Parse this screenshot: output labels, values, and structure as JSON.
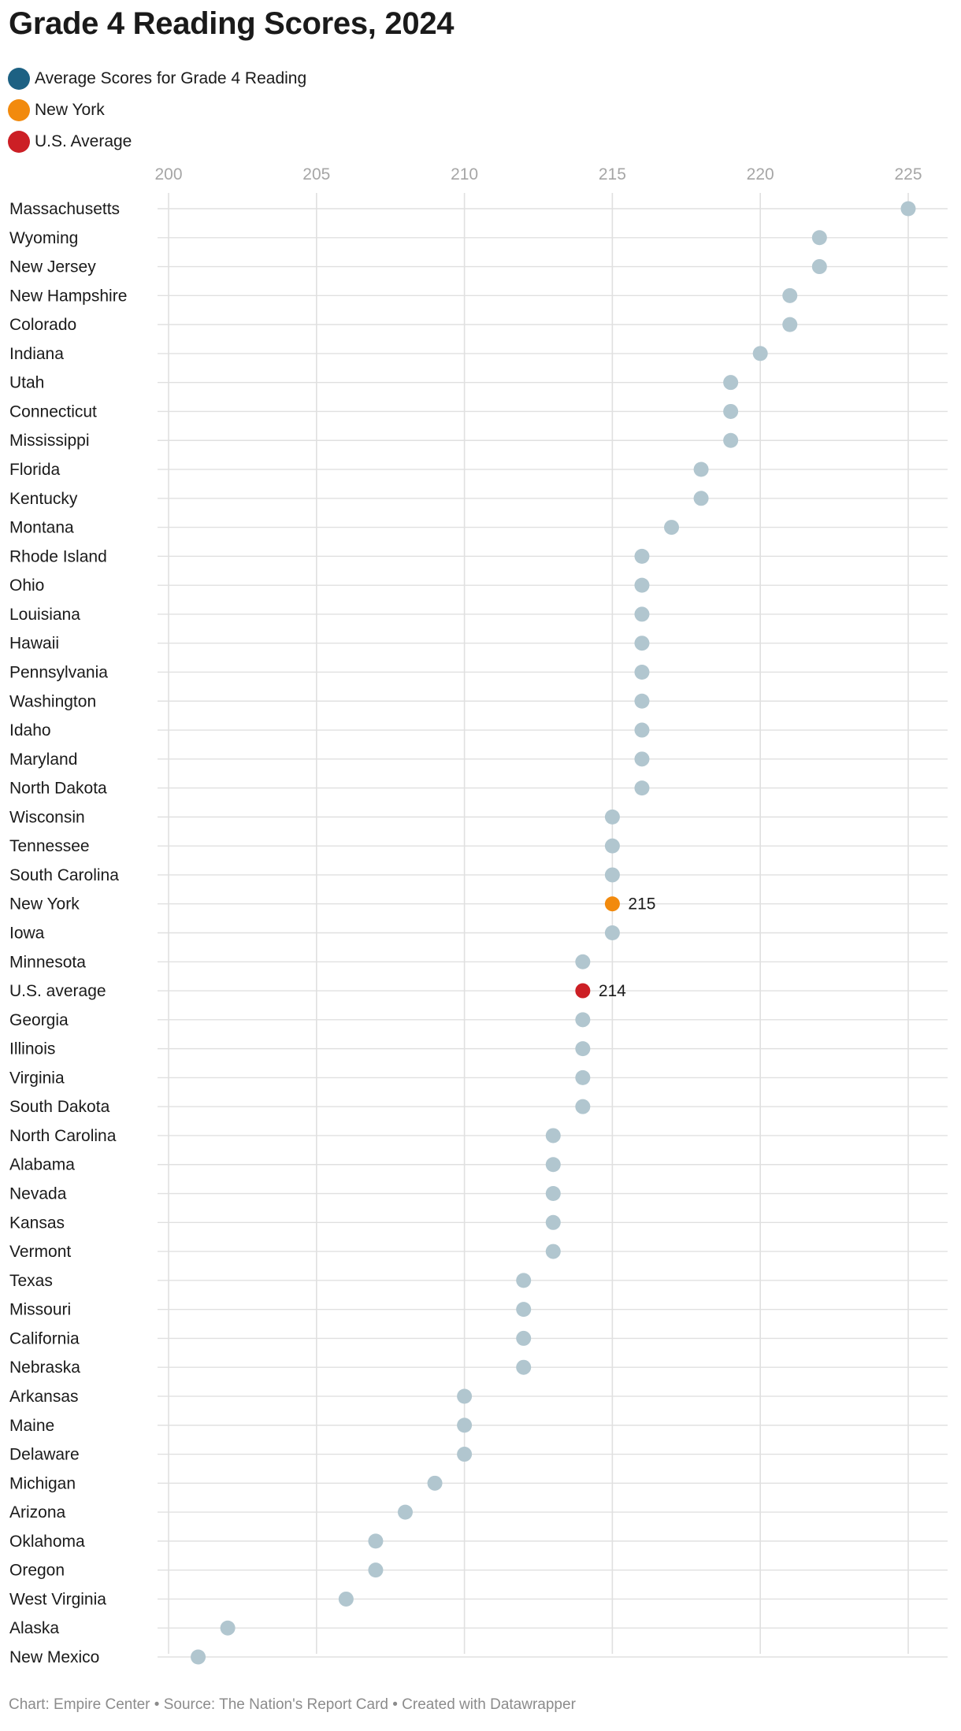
{
  "colors": {
    "average": "#1d6183",
    "highlight": "#f28a0d",
    "us_average": "#cc1f25",
    "dot": "#b1c6cf",
    "grid": "#e0e0e0",
    "tick": "#a6a6a6"
  },
  "legend": [
    {
      "label": "Average Scores for Grade 4 Reading",
      "color": "#1d6183"
    },
    {
      "label": "New York",
      "color": "#f28a0d"
    },
    {
      "label": "U.S. Average",
      "color": "#cc1f25"
    }
  ],
  "footer": "Chart: Empire Center • Source: The Nation's Report Card • Created with Datawrapper",
  "chart_data": {
    "type": "scatter",
    "title": "Grade 4 Reading Scores, 2024",
    "xlabel": "",
    "ylabel": "",
    "xlim": [
      200,
      225
    ],
    "xticks": [
      200,
      205,
      210,
      215,
      220,
      225
    ],
    "grid": true,
    "legend_position": "top-left",
    "rows": [
      {
        "state": "Massachusetts",
        "value": 225
      },
      {
        "state": "Wyoming",
        "value": 222
      },
      {
        "state": "New Jersey",
        "value": 222
      },
      {
        "state": "New Hampshire",
        "value": 221
      },
      {
        "state": "Colorado",
        "value": 221
      },
      {
        "state": "Indiana",
        "value": 220
      },
      {
        "state": "Utah",
        "value": 219
      },
      {
        "state": "Connecticut",
        "value": 219
      },
      {
        "state": "Mississippi",
        "value": 219
      },
      {
        "state": "Florida",
        "value": 218
      },
      {
        "state": "Kentucky",
        "value": 218
      },
      {
        "state": "Montana",
        "value": 217
      },
      {
        "state": "Rhode Island",
        "value": 216
      },
      {
        "state": "Ohio",
        "value": 216
      },
      {
        "state": "Louisiana",
        "value": 216
      },
      {
        "state": "Hawaii",
        "value": 216
      },
      {
        "state": "Pennsylvania",
        "value": 216
      },
      {
        "state": "Washington",
        "value": 216
      },
      {
        "state": "Idaho",
        "value": 216
      },
      {
        "state": "Maryland",
        "value": 216
      },
      {
        "state": "North Dakota",
        "value": 216
      },
      {
        "state": "Wisconsin",
        "value": 215
      },
      {
        "state": "Tennessee",
        "value": 215
      },
      {
        "state": "South Carolina",
        "value": 215
      },
      {
        "state": "New York",
        "value": 215,
        "highlight": "highlight",
        "label": "215"
      },
      {
        "state": "Iowa",
        "value": 215
      },
      {
        "state": "Minnesota",
        "value": 214
      },
      {
        "state": "U.S. average",
        "value": 214,
        "highlight": "us_average",
        "label": "214"
      },
      {
        "state": "Georgia",
        "value": 214
      },
      {
        "state": "Illinois",
        "value": 214
      },
      {
        "state": "Virginia",
        "value": 214
      },
      {
        "state": "South Dakota",
        "value": 214
      },
      {
        "state": "North Carolina",
        "value": 213
      },
      {
        "state": "Alabama",
        "value": 213
      },
      {
        "state": "Nevada",
        "value": 213
      },
      {
        "state": "Kansas",
        "value": 213
      },
      {
        "state": "Vermont",
        "value": 213
      },
      {
        "state": "Texas",
        "value": 212
      },
      {
        "state": "Missouri",
        "value": 212
      },
      {
        "state": "California",
        "value": 212
      },
      {
        "state": "Nebraska",
        "value": 212
      },
      {
        "state": "Arkansas",
        "value": 210
      },
      {
        "state": "Maine",
        "value": 210
      },
      {
        "state": "Delaware",
        "value": 210
      },
      {
        "state": "Michigan",
        "value": 209
      },
      {
        "state": "Arizona",
        "value": 208
      },
      {
        "state": "Oklahoma",
        "value": 207
      },
      {
        "state": "Oregon",
        "value": 207
      },
      {
        "state": "West Virginia",
        "value": 206
      },
      {
        "state": "Alaska",
        "value": 202
      },
      {
        "state": "New Mexico",
        "value": 201
      }
    ]
  }
}
